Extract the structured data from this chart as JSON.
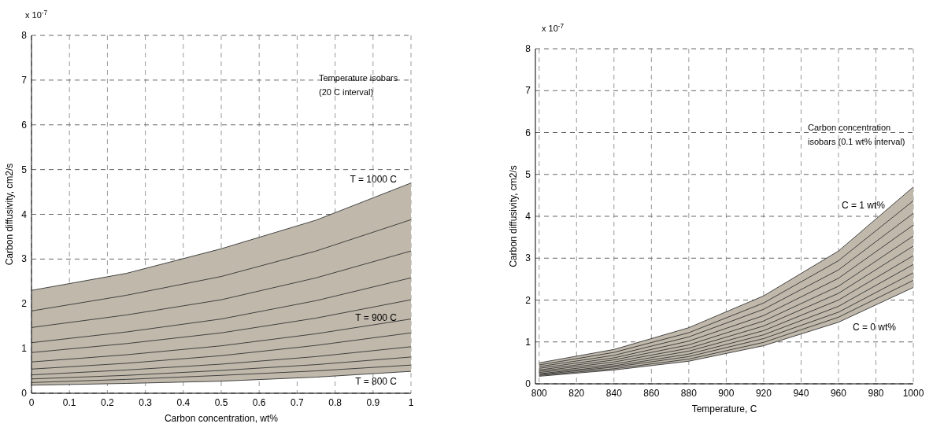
{
  "chart_data": [
    {
      "type": "line",
      "xlabel": "Carbon concentration, wt%",
      "ylabel": "Carbon diffusivity, cm2/s",
      "xlim": [
        0,
        1
      ],
      "xticks": [
        0,
        0.1,
        0.2,
        0.3,
        0.4,
        0.5,
        0.6,
        0.7,
        0.8,
        0.9,
        1
      ],
      "ylim": [
        0,
        8
      ],
      "yticks": [
        0,
        1,
        2,
        3,
        4,
        5,
        6,
        7,
        8
      ],
      "grid": true,
      "line_style": "solid",
      "x": [
        0,
        0.25,
        0.5,
        0.75,
        1
      ],
      "series": [
        {
          "color": "#333333",
          "values": [
            0.18,
            0.22,
            0.27,
            0.36,
            0.49
          ]
        },
        {
          "color": "#333333",
          "values": [
            0.24,
            0.31,
            0.4,
            0.5,
            0.63
          ]
        },
        {
          "color": "#333333",
          "values": [
            0.32,
            0.4,
            0.51,
            0.64,
            0.81
          ]
        },
        {
          "color": "#333333",
          "values": [
            0.41,
            0.52,
            0.65,
            0.82,
            1.04
          ]
        },
        {
          "color": "#333333",
          "values": [
            0.54,
            0.67,
            0.84,
            1.07,
            1.35
          ]
        },
        {
          "color": "#333333",
          "values": [
            0.7,
            0.86,
            1.06,
            1.33,
            1.66
          ]
        },
        {
          "color": "#333333",
          "values": [
            0.91,
            1.11,
            1.35,
            1.68,
            2.09
          ]
        },
        {
          "color": "#333333",
          "values": [
            1.13,
            1.37,
            1.66,
            2.07,
            2.58
          ]
        },
        {
          "color": "#333333",
          "values": [
            1.47,
            1.75,
            2.09,
            2.58,
            3.18
          ]
        },
        {
          "color": "#333333",
          "values": [
            1.84,
            2.19,
            2.61,
            3.18,
            3.88
          ]
        },
        {
          "color": "#333333",
          "values": [
            2.3,
            2.68,
            3.23,
            3.87,
            4.7
          ],
          "lower": [
            0.18,
            0.22,
            0.27,
            0.36,
            0.49
          ],
          "upper": [
            2.3,
            2.68,
            3.23,
            3.87,
            4.7
          ]
        }
      ],
      "annotations": [
        "x 10$^{-7}$",
        "Temperature isobars\n(20 C interval)",
        "T = 1000 C",
        "T = 900 C",
        "T = 800 C"
      ]
    },
    {
      "type": "line",
      "xlabel": "Temperature, C",
      "ylabel": "Carbon diffusivity, cm2/s",
      "xlim": [
        798,
        1000
      ],
      "xticks": [
        800,
        820,
        840,
        860,
        880,
        900,
        920,
        940,
        960,
        980,
        1000
      ],
      "ylim": [
        0,
        8
      ],
      "yticks": [
        0,
        1,
        2,
        3,
        4,
        5,
        6,
        7,
        8
      ],
      "grid": true,
      "line_style": "solid",
      "x": [
        800,
        840,
        880,
        920,
        960,
        1000
      ],
      "series": [
        {
          "color": "#333333",
          "values": [
            0.18,
            0.33,
            0.54,
            0.91,
            1.47,
            2.3
          ]
        },
        {
          "color": "#333333",
          "values": [
            0.2,
            0.36,
            0.59,
            0.99,
            1.59,
            2.47
          ]
        },
        {
          "color": "#333333",
          "values": [
            0.22,
            0.4,
            0.65,
            1.08,
            1.71,
            2.65
          ]
        },
        {
          "color": "#333333",
          "values": [
            0.24,
            0.43,
            0.71,
            1.17,
            1.85,
            2.85
          ]
        },
        {
          "color": "#333333",
          "values": [
            0.27,
            0.47,
            0.78,
            1.27,
            2.0,
            3.06
          ]
        },
        {
          "color": "#333333",
          "values": [
            0.3,
            0.52,
            0.85,
            1.38,
            2.16,
            3.29
          ]
        },
        {
          "color": "#333333",
          "values": [
            0.33,
            0.57,
            0.93,
            1.5,
            2.33,
            3.53
          ]
        },
        {
          "color": "#333333",
          "values": [
            0.37,
            0.62,
            1.02,
            1.63,
            2.52,
            3.79
          ]
        },
        {
          "color": "#333333",
          "values": [
            0.41,
            0.68,
            1.12,
            1.78,
            2.72,
            4.07
          ]
        },
        {
          "color": "#333333",
          "values": [
            0.45,
            0.75,
            1.22,
            1.93,
            2.94,
            4.37
          ]
        },
        {
          "color": "#333333",
          "values": [
            0.5,
            0.82,
            1.34,
            2.1,
            3.17,
            4.7
          ],
          "lower": [
            0.18,
            0.33,
            0.54,
            0.91,
            1.47,
            2.3
          ],
          "upper": [
            0.5,
            0.82,
            1.34,
            2.1,
            3.17,
            4.7
          ]
        }
      ],
      "annotations": [
        "x 10$^{-7}$",
        "Carbon concentration\nisobars (0.1 wt% interval)",
        "C = 1 wt%",
        "C = 0 wt%"
      ]
    }
  ]
}
